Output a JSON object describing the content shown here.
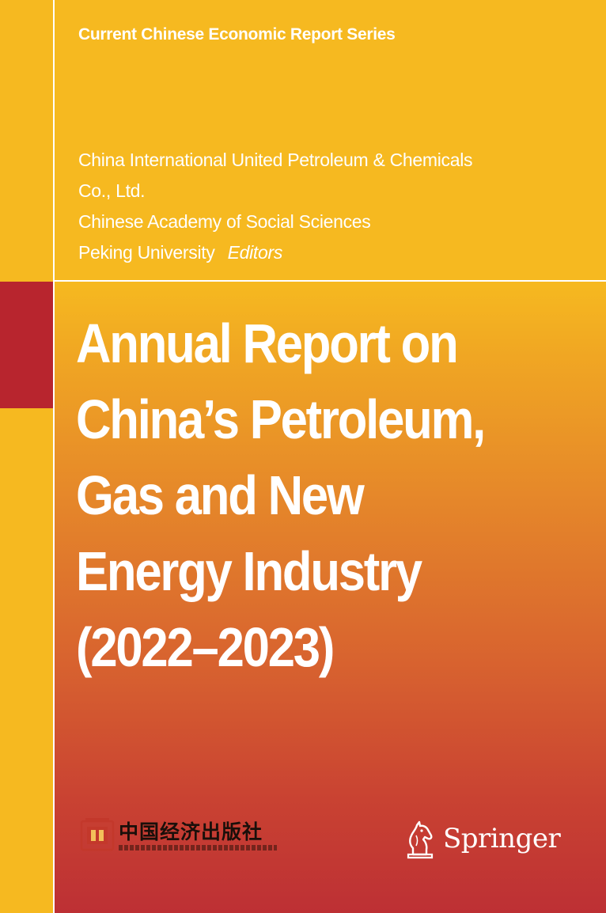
{
  "cover": {
    "series_title": "Current Chinese Economic Report Series",
    "editors": [
      "China International United Petroleum & Chemicals",
      "Co., Ltd.",
      "Chinese Academy of Social Sciences",
      "Peking University"
    ],
    "editors_role": "Editors",
    "title_lines": [
      "Annual Report on",
      "China’s Petroleum,",
      "Gas and New",
      "Energy Industry",
      "(2022–2023)"
    ],
    "publisher_cn_name": "中国经济出版社",
    "publisher_name": "Springer"
  },
  "colors": {
    "background": "#f6b920",
    "accent_red": "#b8252e",
    "gradient_bottom": "#bd3034",
    "text": "#ffffff"
  },
  "icons": {
    "publisher_seal": "seal-icon",
    "springer_mark": "chess-knight-icon"
  }
}
